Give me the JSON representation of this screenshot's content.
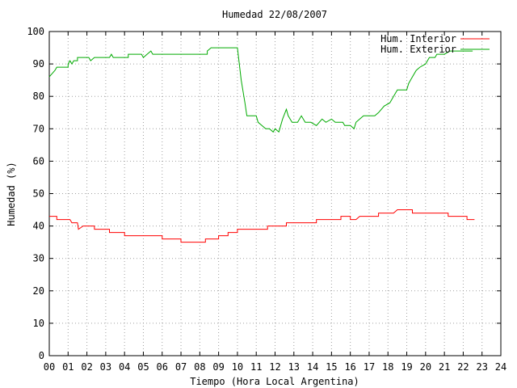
{
  "chart_data": {
    "type": "line",
    "title": "Humedad 22/08/2007",
    "xlabel": "Tiempo (Hora Local Argentina)",
    "ylabel": "Humedad (%)",
    "xlim": [
      0,
      24
    ],
    "ylim": [
      0,
      100
    ],
    "x_ticks": [
      "00",
      "01",
      "02",
      "03",
      "04",
      "05",
      "06",
      "07",
      "08",
      "09",
      "10",
      "11",
      "12",
      "13",
      "14",
      "15",
      "16",
      "17",
      "18",
      "19",
      "20",
      "21",
      "22",
      "23",
      "24"
    ],
    "y_ticks": [
      "0",
      "10",
      "20",
      "30",
      "40",
      "50",
      "60",
      "70",
      "80",
      "90",
      "100"
    ],
    "grid": true,
    "legend_position": "top-right",
    "series": [
      {
        "name": "Hum. Interior",
        "color": "#ff0000",
        "points": [
          [
            0.0,
            43
          ],
          [
            0.4,
            43
          ],
          [
            0.4,
            42
          ],
          [
            1.1,
            42
          ],
          [
            1.2,
            41
          ],
          [
            1.5,
            41
          ],
          [
            1.55,
            39
          ],
          [
            1.8,
            40
          ],
          [
            2.4,
            40
          ],
          [
            2.4,
            39
          ],
          [
            3.2,
            39
          ],
          [
            3.2,
            38
          ],
          [
            3.7,
            38
          ],
          [
            4.0,
            38
          ],
          [
            4.0,
            37
          ],
          [
            4.5,
            37
          ],
          [
            5.0,
            37
          ],
          [
            5.0,
            37
          ],
          [
            5.4,
            37
          ],
          [
            5.4,
            37
          ],
          [
            6.0,
            37
          ],
          [
            6.0,
            36
          ],
          [
            7.0,
            36
          ],
          [
            7.0,
            35
          ],
          [
            8.3,
            35
          ],
          [
            8.3,
            36
          ],
          [
            9.0,
            36
          ],
          [
            9.0,
            37
          ],
          [
            9.5,
            37
          ],
          [
            9.5,
            38
          ],
          [
            10.0,
            38
          ],
          [
            10.0,
            39
          ],
          [
            11.6,
            39
          ],
          [
            11.6,
            40
          ],
          [
            12.6,
            40
          ],
          [
            12.6,
            41
          ],
          [
            14.2,
            41
          ],
          [
            14.2,
            42
          ],
          [
            15.5,
            42
          ],
          [
            15.5,
            43
          ],
          [
            16.0,
            43
          ],
          [
            16.0,
            42
          ],
          [
            16.3,
            42
          ],
          [
            16.5,
            43
          ],
          [
            17.5,
            43
          ],
          [
            17.5,
            44
          ],
          [
            18.3,
            44
          ],
          [
            18.5,
            45
          ],
          [
            19.3,
            45
          ],
          [
            19.3,
            44
          ],
          [
            21.2,
            44
          ],
          [
            21.2,
            43
          ],
          [
            22.2,
            43
          ],
          [
            22.2,
            42
          ],
          [
            22.6,
            42
          ]
        ]
      },
      {
        "name": "Hum. Exterior",
        "color": "#00aa00",
        "points": [
          [
            0.0,
            86
          ],
          [
            0.15,
            87
          ],
          [
            0.3,
            88
          ],
          [
            0.4,
            89
          ],
          [
            1.0,
            89
          ],
          [
            1.0,
            90
          ],
          [
            1.1,
            91
          ],
          [
            1.2,
            90
          ],
          [
            1.3,
            91
          ],
          [
            1.5,
            91
          ],
          [
            1.5,
            92
          ],
          [
            2.1,
            92
          ],
          [
            2.2,
            91
          ],
          [
            2.4,
            92
          ],
          [
            3.2,
            92
          ],
          [
            3.3,
            93
          ],
          [
            3.4,
            92
          ],
          [
            4.2,
            92
          ],
          [
            4.2,
            93
          ],
          [
            4.9,
            93
          ],
          [
            5.0,
            92
          ],
          [
            5.2,
            93
          ],
          [
            5.4,
            94
          ],
          [
            5.5,
            93
          ],
          [
            8.4,
            93
          ],
          [
            8.4,
            94
          ],
          [
            8.6,
            95
          ],
          [
            10.0,
            95
          ],
          [
            10.2,
            85
          ],
          [
            10.4,
            78
          ],
          [
            10.5,
            74
          ],
          [
            11.0,
            74
          ],
          [
            11.1,
            72
          ],
          [
            11.3,
            71
          ],
          [
            11.5,
            70
          ],
          [
            11.7,
            70
          ],
          [
            11.9,
            69
          ],
          [
            12.0,
            70
          ],
          [
            12.2,
            69
          ],
          [
            12.4,
            73
          ],
          [
            12.6,
            76
          ],
          [
            12.7,
            74
          ],
          [
            12.9,
            72
          ],
          [
            13.2,
            72
          ],
          [
            13.4,
            74
          ],
          [
            13.6,
            72
          ],
          [
            13.9,
            72
          ],
          [
            14.2,
            71
          ],
          [
            14.5,
            73
          ],
          [
            14.7,
            72
          ],
          [
            15.0,
            73
          ],
          [
            15.2,
            72
          ],
          [
            15.6,
            72
          ],
          [
            15.7,
            71
          ],
          [
            16.0,
            71
          ],
          [
            16.2,
            70
          ],
          [
            16.3,
            72
          ],
          [
            16.5,
            73
          ],
          [
            16.7,
            74
          ],
          [
            17.3,
            74
          ],
          [
            17.5,
            75
          ],
          [
            17.8,
            77
          ],
          [
            18.1,
            78
          ],
          [
            18.3,
            80
          ],
          [
            18.5,
            82
          ],
          [
            19.0,
            82
          ],
          [
            19.1,
            84
          ],
          [
            19.3,
            86
          ],
          [
            19.5,
            88
          ],
          [
            19.7,
            89
          ],
          [
            20.0,
            90
          ],
          [
            20.1,
            91
          ],
          [
            20.2,
            92
          ],
          [
            20.5,
            92
          ],
          [
            20.6,
            93
          ],
          [
            21.0,
            93
          ],
          [
            21.3,
            94
          ],
          [
            21.6,
            94
          ],
          [
            22.0,
            94
          ],
          [
            22.2,
            94
          ],
          [
            22.5,
            94
          ]
        ]
      }
    ]
  }
}
